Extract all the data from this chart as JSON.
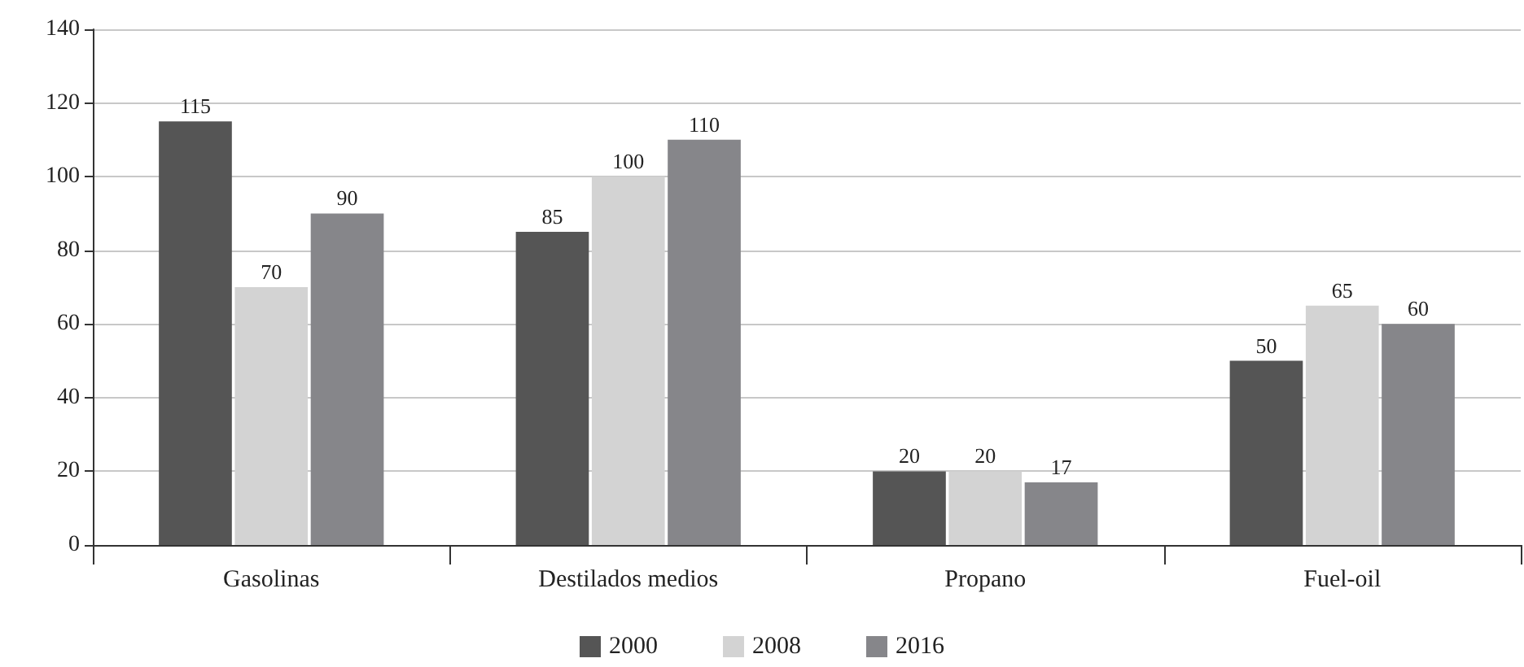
{
  "chart_data": {
    "type": "bar",
    "categories": [
      "Gasolinas",
      "Destilados medios",
      "Propano",
      "Fuel-oil"
    ],
    "series": [
      {
        "name": "2000",
        "color": "#555555",
        "values": [
          115,
          85,
          20,
          50
        ]
      },
      {
        "name": "2008",
        "color": "#d3d3d3",
        "values": [
          70,
          100,
          20,
          65
        ]
      },
      {
        "name": "2016",
        "color": "#86868a",
        "values": [
          90,
          110,
          17,
          60
        ]
      }
    ],
    "ylim": [
      0,
      140
    ],
    "yticks": [
      0,
      20,
      40,
      60,
      80,
      100,
      120,
      140
    ],
    "grid": "y",
    "legend": "bottom",
    "data_labels": true
  }
}
